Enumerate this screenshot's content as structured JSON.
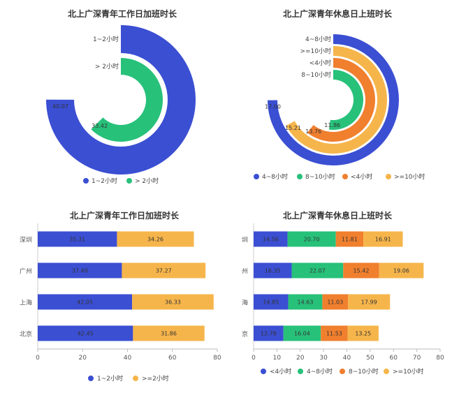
{
  "colors": {
    "blue": "#3b4fd3",
    "green": "#27c17a",
    "orange": "#f07f2e",
    "yellow": "#f6b54b"
  },
  "chart_data": [
    {
      "type": "radial-bar",
      "title": "北上广深青年工作日加班时长",
      "categories": [
        "1~2小时",
        "> 2小时"
      ],
      "values": [
        40.07,
        33.42
      ],
      "value_labels": [
        "40.07",
        "33.42"
      ],
      "legend": [
        "1~2小时",
        "> 2小时"
      ],
      "legend_placement": "bottom"
    },
    {
      "type": "radial-bar",
      "title": "北上广深青年休息日上班时长",
      "categories": [
        "4~8小时",
        ">=10小时",
        "<4小时",
        "8~10小时"
      ],
      "values": [
        17.0,
        15.21,
        13.76,
        11.86
      ],
      "value_labels": [
        "17.00",
        "15.21",
        "13.76",
        "11.86"
      ],
      "legend": [
        "4~8小时",
        "8~10小时",
        "<4小时",
        ">=10小时"
      ],
      "legend_placement": "bottom"
    },
    {
      "type": "bar",
      "orientation": "horizontal",
      "stacked": true,
      "title": "北上广深青年工作日加班时长",
      "categories": [
        "深圳",
        "广州",
        "上海",
        "北京"
      ],
      "series": [
        {
          "name": "1~2小时",
          "values": [
            35.31,
            37.49,
            42.05,
            42.45
          ]
        },
        {
          "name": ">=2小时",
          "values": [
            34.26,
            37.27,
            36.33,
            31.86
          ]
        }
      ],
      "xlim": [
        0,
        80
      ],
      "xticks": [
        "0",
        "20",
        "40",
        "60",
        "80"
      ],
      "legend_placement": "bottom"
    },
    {
      "type": "bar",
      "orientation": "horizontal",
      "stacked": true,
      "title": "北上广深青年休息日上班时长",
      "categories": [
        "圳",
        "州",
        "海",
        "京"
      ],
      "series": [
        {
          "name": "<4小时",
          "values": [
            14.56,
            16.35,
            14.85,
            12.78
          ]
        },
        {
          "name": "4~8小时",
          "values": [
            20.7,
            22.07,
            14.63,
            16.04
          ]
        },
        {
          "name": "8~10小时",
          "values": [
            11.81,
            15.42,
            11.03,
            11.53
          ]
        },
        {
          "name": ">=10小时",
          "values": [
            16.91,
            19.06,
            17.99,
            13.25
          ]
        }
      ],
      "xlim": [
        0,
        80
      ],
      "xticks": [
        "0",
        "10",
        "20",
        "30",
        "40",
        "50",
        "60",
        "70",
        "80"
      ],
      "legend_placement": "bottom"
    }
  ]
}
